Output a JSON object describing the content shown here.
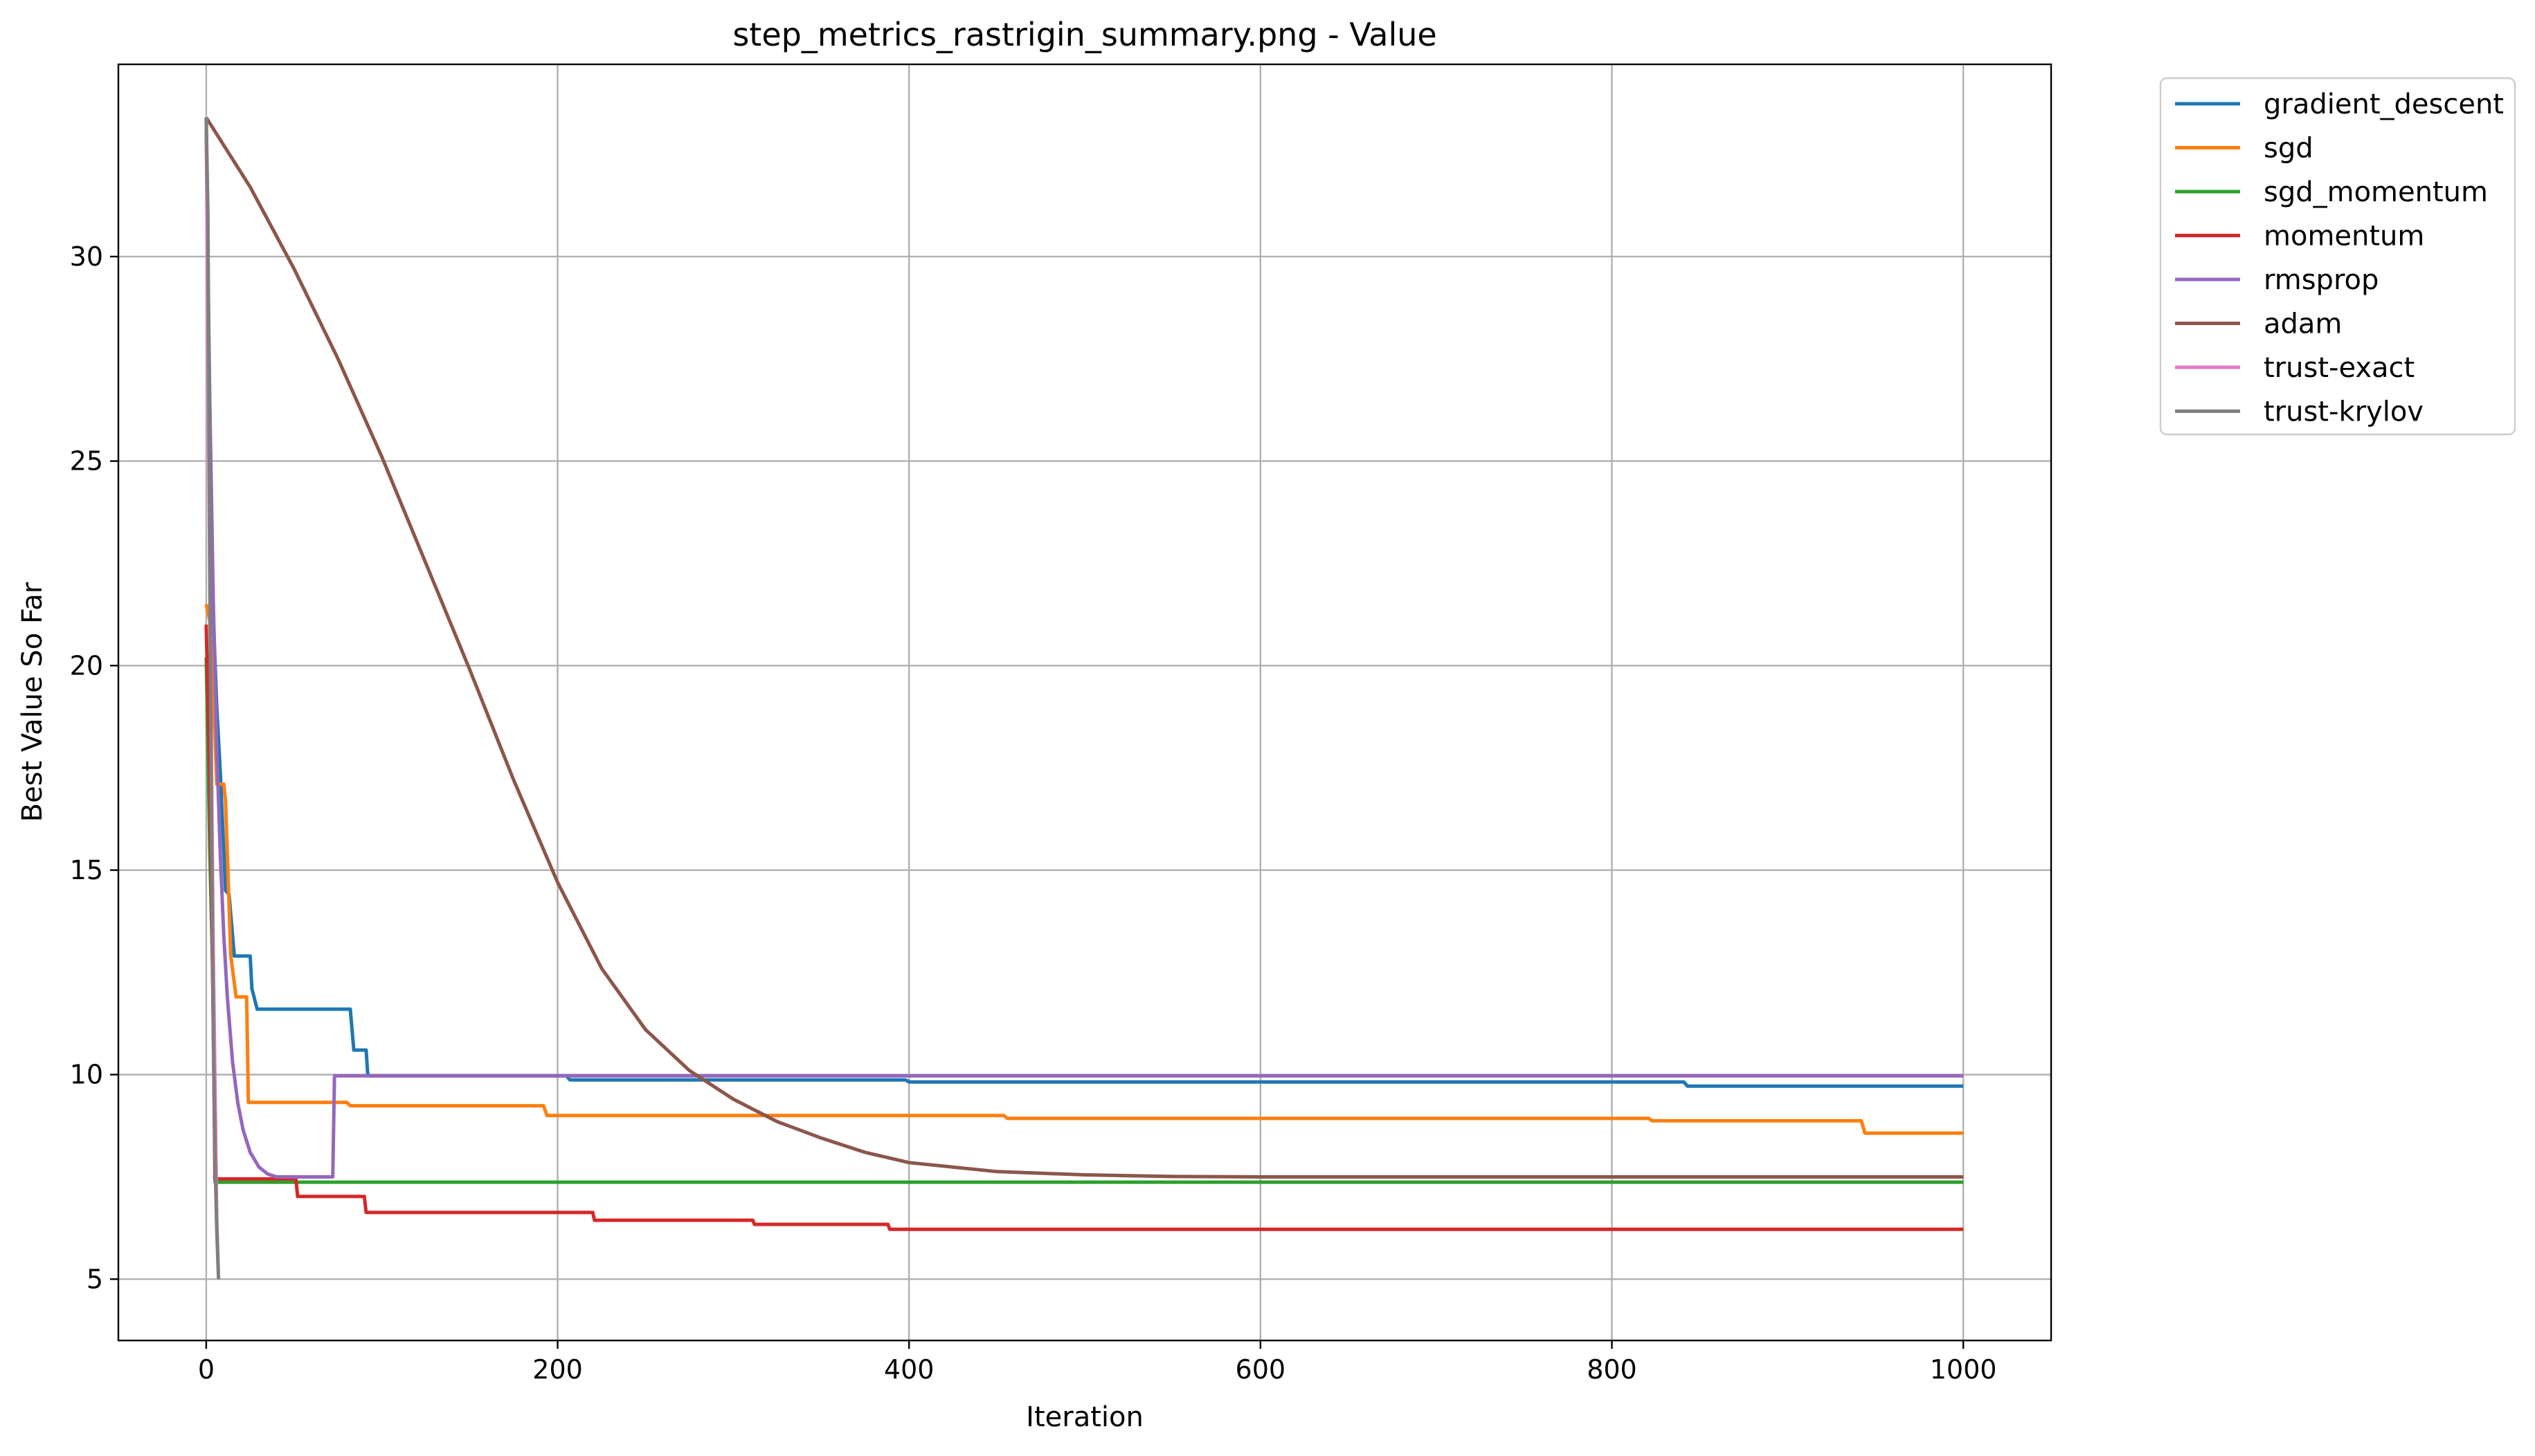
{
  "chart_data": {
    "type": "line",
    "title": "step_metrics_rastrigin_summary.png - Value",
    "xlabel": "Iteration",
    "ylabel": "Best Value So Far",
    "xlim": [
      -50,
      1050
    ],
    "ylim": [
      3.5,
      34.7
    ],
    "xticks": [
      0,
      200,
      400,
      600,
      800,
      1000
    ],
    "xtick_labels": [
      "0",
      "200",
      "400",
      "600",
      "800",
      "1000"
    ],
    "yticks": [
      5,
      10,
      15,
      20,
      25,
      30
    ],
    "ytick_labels": [
      "5",
      "10",
      "15",
      "20",
      "25",
      "30"
    ],
    "grid": true,
    "legend_position": "outside upper-right",
    "series": [
      {
        "name": "gradient_descent",
        "color": "#1f77b4",
        "step": true,
        "points": [
          [
            0,
            33.4
          ],
          [
            3,
            22.4
          ],
          [
            6,
            19.0
          ],
          [
            8,
            17.4
          ],
          [
            11,
            14.5
          ],
          [
            13,
            14.4
          ],
          [
            16,
            12.9
          ],
          [
            25,
            12.9
          ],
          [
            26,
            12.1
          ],
          [
            29,
            11.6
          ],
          [
            82,
            11.6
          ],
          [
            84,
            10.6
          ],
          [
            91,
            10.6
          ],
          [
            92,
            9.97
          ],
          [
            205,
            9.97
          ],
          [
            207,
            9.87
          ],
          [
            398,
            9.87
          ],
          [
            400,
            9.82
          ],
          [
            841,
            9.82
          ],
          [
            843,
            9.72
          ],
          [
            1000,
            9.72
          ]
        ]
      },
      {
        "name": "sgd",
        "color": "#ff7f0e",
        "step": true,
        "points": [
          [
            0,
            21.5
          ],
          [
            2,
            21.1
          ],
          [
            4,
            19.4
          ],
          [
            6,
            17.1
          ],
          [
            10,
            17.1
          ],
          [
            11,
            16.7
          ],
          [
            14,
            12.9
          ],
          [
            17,
            11.9
          ],
          [
            23,
            11.9
          ],
          [
            24,
            9.32
          ],
          [
            80,
            9.32
          ],
          [
            82,
            9.24
          ],
          [
            192,
            9.24
          ],
          [
            194,
            9.0
          ],
          [
            454,
            9.0
          ],
          [
            456,
            8.93
          ],
          [
            821,
            8.93
          ],
          [
            823,
            8.87
          ],
          [
            942,
            8.87
          ],
          [
            944,
            8.57
          ],
          [
            1000,
            8.57
          ]
        ]
      },
      {
        "name": "sgd_momentum",
        "color": "#2ca02c",
        "step": true,
        "points": [
          [
            0,
            20.2
          ],
          [
            2,
            15.5
          ],
          [
            4,
            12.0
          ],
          [
            5,
            7.37
          ],
          [
            1000,
            7.37
          ]
        ]
      },
      {
        "name": "momentum",
        "color": "#d62728",
        "step": true,
        "points": [
          [
            0,
            21.0
          ],
          [
            2,
            17.3
          ],
          [
            4,
            11.2
          ],
          [
            5,
            7.45
          ],
          [
            51,
            7.45
          ],
          [
            52,
            7.02
          ],
          [
            90,
            7.02
          ],
          [
            91,
            6.63
          ],
          [
            220,
            6.63
          ],
          [
            221,
            6.44
          ],
          [
            311,
            6.44
          ],
          [
            312,
            6.34
          ],
          [
            388,
            6.34
          ],
          [
            389,
            6.22
          ],
          [
            1000,
            6.22
          ]
        ]
      },
      {
        "name": "rmsprop",
        "color": "#9467bd",
        "step": false,
        "points": [
          [
            0,
            33.0
          ],
          [
            2,
            26.5
          ],
          [
            4,
            21.6
          ],
          [
            6,
            18.0
          ],
          [
            8,
            15.4
          ],
          [
            10,
            13.4
          ],
          [
            12,
            11.9
          ],
          [
            15,
            10.3
          ],
          [
            18,
            9.3
          ],
          [
            21,
            8.65
          ],
          [
            25,
            8.1
          ],
          [
            30,
            7.74
          ],
          [
            35,
            7.57
          ],
          [
            40,
            7.5
          ],
          [
            72,
            7.5
          ],
          [
            73,
            9.97
          ],
          [
            1000,
            9.97
          ]
        ]
      },
      {
        "name": "adam",
        "color": "#8c564b",
        "step": false,
        "points": [
          [
            0,
            33.4
          ],
          [
            25,
            31.7
          ],
          [
            50,
            29.7
          ],
          [
            75,
            27.5
          ],
          [
            100,
            25.1
          ],
          [
            125,
            22.5
          ],
          [
            150,
            19.9
          ],
          [
            175,
            17.2
          ],
          [
            200,
            14.7
          ],
          [
            225,
            12.6
          ],
          [
            250,
            11.1
          ],
          [
            275,
            10.1
          ],
          [
            300,
            9.4
          ],
          [
            325,
            8.85
          ],
          [
            350,
            8.45
          ],
          [
            375,
            8.1
          ],
          [
            400,
            7.85
          ],
          [
            450,
            7.63
          ],
          [
            500,
            7.55
          ],
          [
            550,
            7.51
          ],
          [
            600,
            7.5
          ],
          [
            1000,
            7.5
          ]
        ]
      },
      {
        "name": "trust-exact",
        "color": "#e377c2",
        "step": false,
        "points": [
          [
            0,
            33.4
          ],
          [
            2,
            22.0
          ],
          [
            4,
            13.0
          ],
          [
            6,
            6.5
          ],
          [
            7,
            5.0
          ]
        ]
      },
      {
        "name": "trust-krylov",
        "color": "#7f7f7f",
        "step": false,
        "points": [
          [
            0,
            33.4
          ],
          [
            1,
            31.0
          ],
          [
            2,
            23.0
          ],
          [
            3,
            16.0
          ],
          [
            4,
            11.0
          ],
          [
            5,
            8.0
          ],
          [
            6,
            6.2
          ],
          [
            7,
            5.0
          ]
        ]
      }
    ]
  }
}
